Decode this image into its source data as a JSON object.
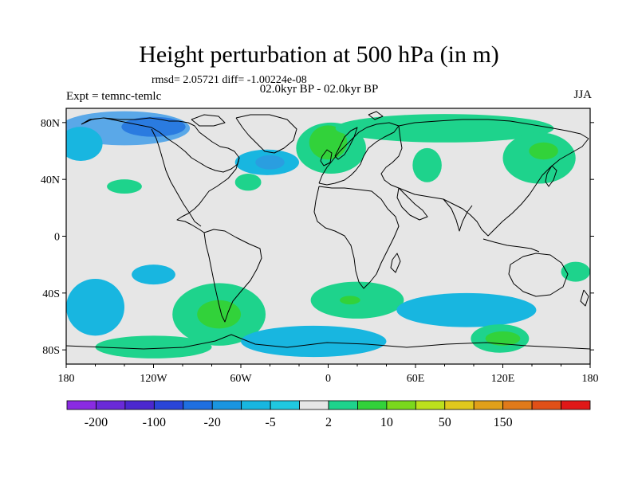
{
  "title": "Height perturbation at 500 hPa (in m)",
  "stats": "rmsd= 2.05721 diff= -1.00224e-08",
  "period": "02.0kyr BP - 02.0kyr BP",
  "experiment": "Expt = temnc-temlc",
  "season": "JJA",
  "map": {
    "ocean_color": "#e6e6e6",
    "lon_range": [
      -180,
      180
    ],
    "lat_range": [
      -90,
      90
    ],
    "lon_ticks": [
      {
        "value": -180,
        "label": "180"
      },
      {
        "value": -120,
        "label": "120W"
      },
      {
        "value": -60,
        "label": "60W"
      },
      {
        "value": 0,
        "label": "0"
      },
      {
        "value": 60,
        "label": "60E"
      },
      {
        "value": 120,
        "label": "120E"
      },
      {
        "value": 180,
        "label": "180"
      }
    ],
    "lat_ticks": [
      {
        "value": 80,
        "label": "80N"
      },
      {
        "value": 40,
        "label": "40N"
      },
      {
        "value": 0,
        "label": "0"
      },
      {
        "value": -40,
        "label": "40S"
      },
      {
        "value": -80,
        "label": "80S"
      }
    ]
  },
  "colorbar": {
    "colors": [
      "#8a2be2",
      "#6a2ad8",
      "#4b28cf",
      "#2a45d8",
      "#1f6fe0",
      "#1a95e0",
      "#18b6e0",
      "#20c8e0",
      "#e6e6e6",
      "#1ed38c",
      "#32d23a",
      "#7ad81c",
      "#bce01c",
      "#e0c81c",
      "#e0a01a",
      "#e07a1a",
      "#e05018",
      "#e01818"
    ],
    "labels": [
      {
        "boundary": 1,
        "text": "-200"
      },
      {
        "boundary": 3,
        "text": "-100"
      },
      {
        "boundary": 5,
        "text": "-20"
      },
      {
        "boundary": 7,
        "text": "-5"
      },
      {
        "boundary": 9,
        "text": "2"
      },
      {
        "boundary": 11,
        "text": "10"
      },
      {
        "boundary": 13,
        "text": "50"
      },
      {
        "boundary": 15,
        "text": "150"
      }
    ]
  },
  "anomalies": [
    {
      "name": "arctic-pacific-negative",
      "level": -2,
      "color": "#5aa8e8",
      "lon": -140,
      "lat": 76,
      "rx": 45,
      "ry": 12
    },
    {
      "name": "arctic-negative-core",
      "level": -3,
      "color": "#2a7be0",
      "lon": -120,
      "lat": 77,
      "rx": 22,
      "ry": 7
    },
    {
      "name": "alaska-negative",
      "level": -2,
      "color": "#18b6e0",
      "lon": -170,
      "lat": 65,
      "rx": 15,
      "ry": 12
    },
    {
      "name": "north-atlantic-negative",
      "level": -2,
      "color": "#18b6e0",
      "lon": -42,
      "lat": 52,
      "rx": 22,
      "ry": 9
    },
    {
      "name": "north-atlantic-negative-core",
      "level": -3,
      "color": "#2a9ee0",
      "lon": -40,
      "lat": 52,
      "rx": 10,
      "ry": 5
    },
    {
      "name": "europe-positive",
      "level": 1,
      "color": "#1ed38c",
      "lon": 2,
      "lat": 62,
      "rx": 24,
      "ry": 18
    },
    {
      "name": "scandinavia-positive-core",
      "level": 2,
      "color": "#32d23a",
      "lon": 0,
      "lat": 66,
      "rx": 13,
      "ry": 12
    },
    {
      "name": "siberia-positive",
      "level": 1,
      "color": "#1ed38c",
      "lon": 80,
      "lat": 76,
      "rx": 75,
      "ry": 10
    },
    {
      "name": "east-asia-positive",
      "level": 1,
      "color": "#1ed38c",
      "lon": 145,
      "lat": 55,
      "rx": 25,
      "ry": 18
    },
    {
      "name": "east-asia-positive-core",
      "level": 2,
      "color": "#32d23a",
      "lon": 148,
      "lat": 60,
      "rx": 10,
      "ry": 6
    },
    {
      "name": "eurasia-positive",
      "level": 1,
      "color": "#1ed38c",
      "lon": 68,
      "lat": 50,
      "rx": 10,
      "ry": 12
    },
    {
      "name": "pacific-negative",
      "level": -1,
      "color": "#18b6e0",
      "lon": -120,
      "lat": -27,
      "rx": 15,
      "ry": 7
    },
    {
      "name": "south-pacific-negative",
      "level": -2,
      "color": "#18b6e0",
      "lon": -160,
      "lat": -50,
      "rx": 20,
      "ry": 20
    },
    {
      "name": "south-america-positive",
      "level": 1,
      "color": "#1ed38c",
      "lon": -75,
      "lat": -55,
      "rx": 32,
      "ry": 22
    },
    {
      "name": "south-america-positive-core",
      "level": 2,
      "color": "#32d23a",
      "lon": -75,
      "lat": -55,
      "rx": 15,
      "ry": 10
    },
    {
      "name": "south-atlantic-positive",
      "level": 1,
      "color": "#1ed38c",
      "lon": 20,
      "lat": -45,
      "rx": 32,
      "ry": 13
    },
    {
      "name": "south-atlantic-positive-core",
      "level": 2,
      "color": "#32d23a",
      "lon": 15,
      "lat": -45,
      "rx": 7,
      "ry": 3
    },
    {
      "name": "indian-ocean-negative",
      "level": -1,
      "color": "#18b6e0",
      "lon": 95,
      "lat": -52,
      "rx": 48,
      "ry": 12
    },
    {
      "name": "southern-ocean-positive",
      "level": 1,
      "color": "#1ed38c",
      "lon": 118,
      "lat": -72,
      "rx": 20,
      "ry": 10
    },
    {
      "name": "southern-ocean-positive-core",
      "level": 2,
      "color": "#32d23a",
      "lon": 120,
      "lat": -72,
      "rx": 12,
      "ry": 5
    },
    {
      "name": "antarctic-negative",
      "level": -1,
      "color": "#18b6e0",
      "lon": -10,
      "lat": -74,
      "rx": 50,
      "ry": 11
    },
    {
      "name": "antarctic-positive",
      "level": 1,
      "color": "#1ed38c",
      "lon": -120,
      "lat": -78,
      "rx": 40,
      "ry": 8
    },
    {
      "name": "atlantic-positive",
      "level": 1,
      "color": "#1ed38c",
      "lon": -140,
      "lat": 35,
      "rx": 12,
      "ry": 5
    },
    {
      "name": "australia-positive",
      "level": 1,
      "color": "#1ed38c",
      "lon": 170,
      "lat": -25,
      "rx": 10,
      "ry": 7
    },
    {
      "name": "tropical-atlantic-positive",
      "level": 1,
      "color": "#1ed38c",
      "lon": -55,
      "lat": 38,
      "rx": 9,
      "ry": 6
    }
  ]
}
